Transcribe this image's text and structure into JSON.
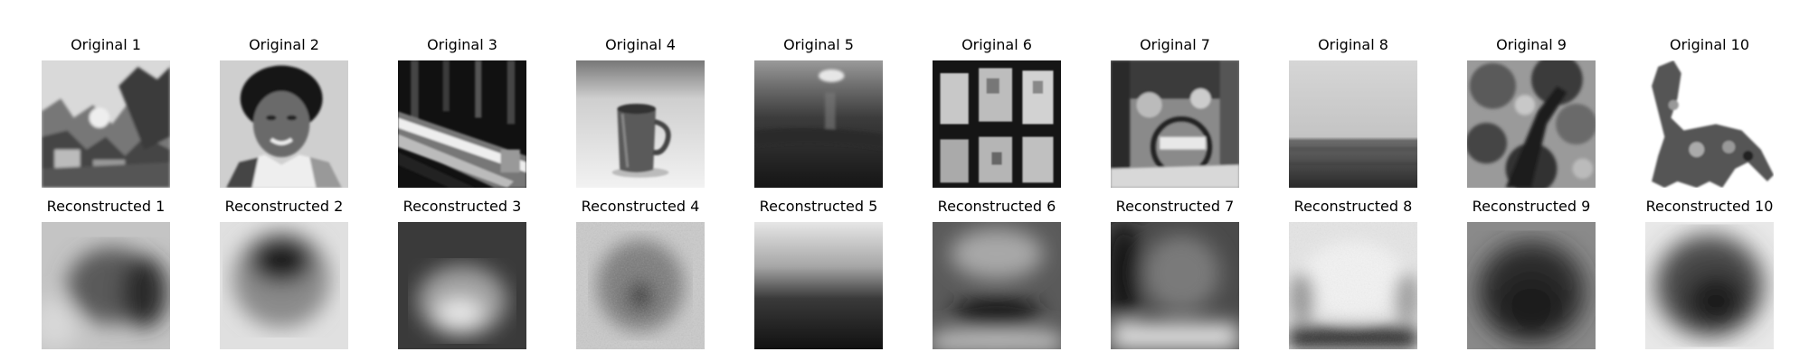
{
  "originals": [
    {
      "title": "Original 1",
      "scene": "landscape-rocks"
    },
    {
      "title": "Original 2",
      "scene": "portrait-face"
    },
    {
      "title": "Original 3",
      "scene": "train-diagonal"
    },
    {
      "title": "Original 4",
      "scene": "mug"
    },
    {
      "title": "Original 5",
      "scene": "sea-sunset"
    },
    {
      "title": "Original 6",
      "scene": "window-frames"
    },
    {
      "title": "Original 7",
      "scene": "bicycle"
    },
    {
      "title": "Original 8",
      "scene": "sky-horizon"
    },
    {
      "title": "Original 9",
      "scene": "tree-foliage"
    },
    {
      "title": "Original 10",
      "scene": "animal-camel"
    }
  ],
  "reconstructions": [
    {
      "title": "Reconstructed 1"
    },
    {
      "title": "Reconstructed 2"
    },
    {
      "title": "Reconstructed 3"
    },
    {
      "title": "Reconstructed 4"
    },
    {
      "title": "Reconstructed 5"
    },
    {
      "title": "Reconstructed 6"
    },
    {
      "title": "Reconstructed 7"
    },
    {
      "title": "Reconstructed 8"
    },
    {
      "title": "Reconstructed 9"
    },
    {
      "title": "Reconstructed 10"
    }
  ]
}
